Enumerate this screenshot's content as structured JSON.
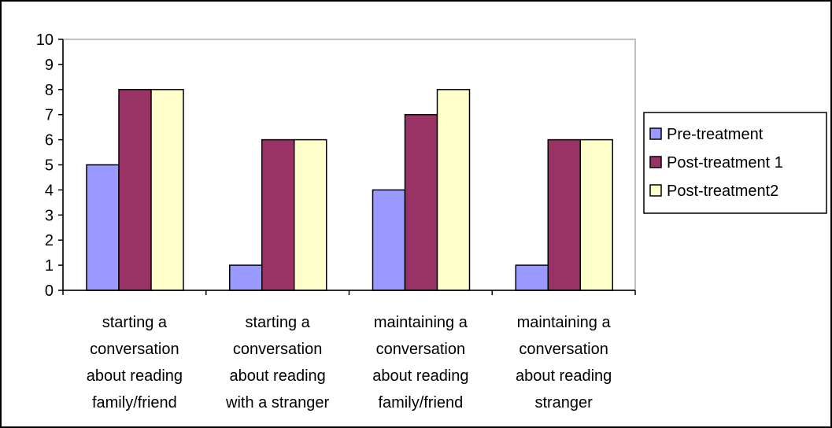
{
  "chart_data": {
    "type": "bar",
    "categories": [
      [
        "starting a",
        "conversation",
        "about reading",
        "family/friend"
      ],
      [
        "starting a",
        "conversation",
        "about reading",
        "with a stranger"
      ],
      [
        "maintaining a",
        "conversation",
        "about reading",
        "family/friend"
      ],
      [
        "maintaining a",
        "conversation",
        "about reading",
        "stranger"
      ]
    ],
    "series": [
      {
        "name": "Pre-treatment",
        "values": [
          5,
          1,
          4,
          1
        ],
        "color": "#9999ff"
      },
      {
        "name": "Post-treatment 1",
        "values": [
          8,
          6,
          7,
          6
        ],
        "color": "#993366"
      },
      {
        "name": "Post-treatment2",
        "values": [
          8,
          6,
          8,
          6
        ],
        "color": "#ffffcc"
      }
    ],
    "yticks": [
      "0",
      "1",
      "2",
      "3",
      "4",
      "5",
      "6",
      "7",
      "8",
      "9",
      "10"
    ],
    "ylim": [
      0,
      10
    ],
    "plot_background": "#c0c0c0",
    "grid": false,
    "legend_position": "right"
  }
}
